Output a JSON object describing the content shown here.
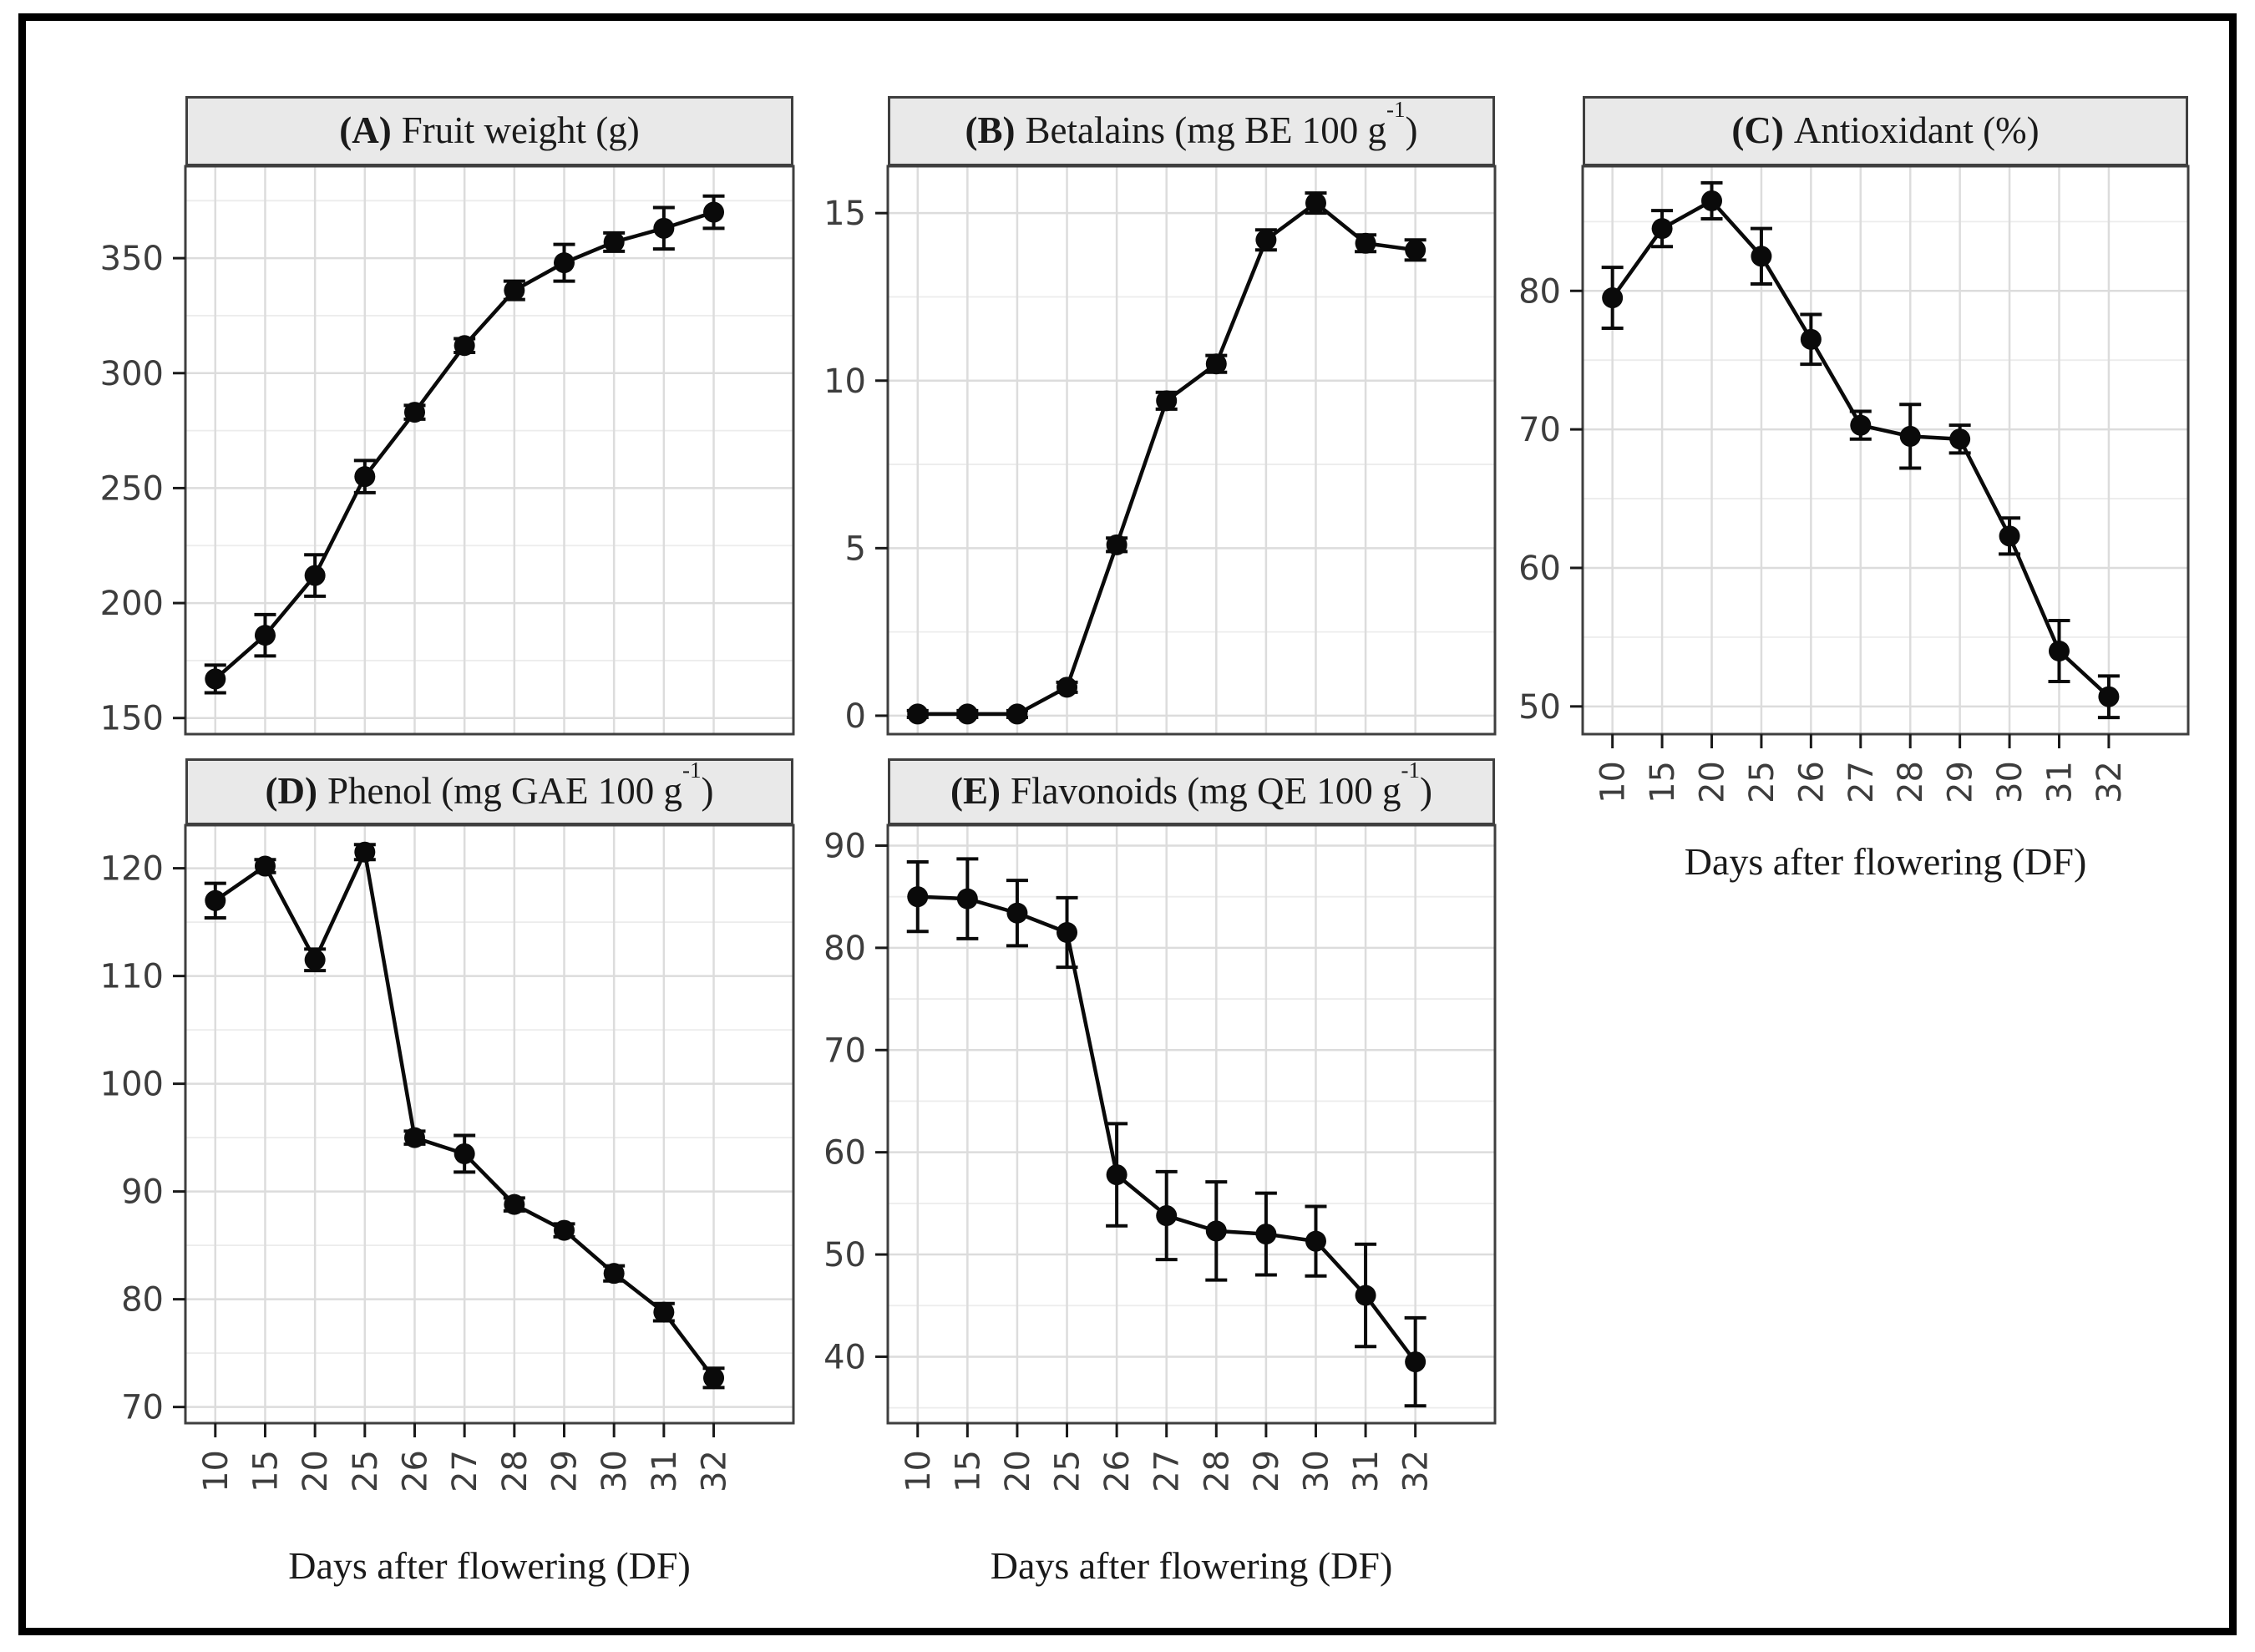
{
  "figure": {
    "kind": "faceted-line-chart-figure",
    "panels_count": 5,
    "shared_x_axis_title": "Days after flowering (DF)",
    "colors": {
      "background": "#ffffff",
      "outer_border": "#000000",
      "panel_border": "#3f3f3f",
      "strip_bg": "#e9e9e9",
      "strip_border": "#3f3f3f",
      "panel_bg": "#ffffff",
      "grid_major": "#dcdcdc",
      "grid_minor": "#ececec",
      "data": "#0a0a0a",
      "tick": "#1a1a1a",
      "tick_label": "#3d3d3d",
      "title_text": "#1a1a1a"
    }
  },
  "chart_data": [
    {
      "id": "A",
      "type": "line",
      "error_bars": true,
      "legend": false,
      "grid": true,
      "title_prefix": "(A)",
      "title_main": "Fruit weight (g)",
      "title_sup": "",
      "title_suffix": "",
      "categories": [
        10,
        15,
        20,
        25,
        26,
        27,
        28,
        29,
        30,
        31,
        32
      ],
      "values": [
        167,
        186,
        212,
        255,
        283,
        312,
        336,
        348,
        357,
        363,
        370
      ],
      "errors": [
        6,
        9,
        9,
        7,
        3,
        3,
        4,
        8,
        4,
        9,
        7
      ],
      "yticks": [
        150,
        200,
        250,
        300,
        350
      ],
      "ylim": [
        143,
        390
      ],
      "xlabel": "",
      "x_tick_labels_visible": false
    },
    {
      "id": "B",
      "type": "line",
      "error_bars": true,
      "legend": false,
      "grid": true,
      "title_prefix": "(B)",
      "title_main": "Betalains (mg BE 100 g",
      "title_sup": "-1",
      "title_suffix": ")",
      "categories": [
        10,
        15,
        20,
        25,
        26,
        27,
        28,
        29,
        30,
        31,
        32
      ],
      "values": [
        0.05,
        0.05,
        0.05,
        0.85,
        5.1,
        9.4,
        10.5,
        14.2,
        15.3,
        14.1,
        13.9
      ],
      "errors": [
        0.1,
        0.1,
        0.1,
        0.15,
        0.2,
        0.25,
        0.25,
        0.3,
        0.3,
        0.25,
        0.3
      ],
      "yticks": [
        0,
        5,
        10,
        15
      ],
      "ylim": [
        -0.55,
        16.4
      ],
      "xlabel": "",
      "x_tick_labels_visible": false
    },
    {
      "id": "C",
      "type": "line",
      "error_bars": true,
      "legend": false,
      "grid": true,
      "title_prefix": "(C)",
      "title_main": "Antioxidant (%)",
      "title_sup": "",
      "title_suffix": "",
      "categories": [
        10,
        15,
        20,
        25,
        26,
        27,
        28,
        29,
        30,
        31,
        32
      ],
      "values": [
        79.5,
        84.5,
        86.5,
        82.5,
        76.5,
        70.3,
        69.5,
        69.3,
        62.3,
        54,
        50.7
      ],
      "errors": [
        2.2,
        1.3,
        1.3,
        2,
        1.8,
        1,
        2.3,
        1,
        1.3,
        2.2,
        1.5
      ],
      "yticks": [
        50,
        60,
        70,
        80
      ],
      "ylim": [
        48,
        89
      ],
      "xlabel": "Days after flowering (DF)",
      "x_tick_labels_visible": true
    },
    {
      "id": "D",
      "type": "line",
      "error_bars": true,
      "legend": false,
      "grid": true,
      "title_prefix": "(D)",
      "title_main": "Phenol (mg GAE 100 g",
      "title_sup": "-1",
      "title_suffix": ")",
      "categories": [
        10,
        15,
        20,
        25,
        26,
        27,
        28,
        29,
        30,
        31,
        32
      ],
      "values": [
        117,
        120.2,
        111.5,
        121.5,
        95,
        93.5,
        88.8,
        86.4,
        82.4,
        78.8,
        72.7
      ],
      "errors": [
        1.6,
        0.6,
        1,
        0.7,
        0.6,
        1.7,
        0.6,
        0.6,
        0.7,
        0.8,
        0.9
      ],
      "yticks": [
        70,
        80,
        90,
        100,
        110,
        120
      ],
      "ylim": [
        68.5,
        124
      ],
      "xlabel": "Days after flowering (DF)",
      "x_tick_labels_visible": true
    },
    {
      "id": "E",
      "type": "line",
      "error_bars": true,
      "legend": false,
      "grid": true,
      "title_prefix": "(E)",
      "title_main": "Flavonoids (mg QE 100 g",
      "title_sup": "-1",
      "title_suffix": ")",
      "categories": [
        10,
        15,
        20,
        25,
        26,
        27,
        28,
        29,
        30,
        31,
        32
      ],
      "values": [
        85,
        84.8,
        83.4,
        81.5,
        57.8,
        53.8,
        52.3,
        52,
        51.3,
        46,
        39.5
      ],
      "errors": [
        3.4,
        3.9,
        3.2,
        3.4,
        5,
        4.3,
        4.8,
        4,
        3.4,
        5,
        4.3
      ],
      "yticks": [
        40,
        50,
        60,
        70,
        80,
        90
      ],
      "ylim": [
        33.5,
        92
      ],
      "xlabel": "Days after flowering (DF)",
      "x_tick_labels_visible": true
    }
  ]
}
